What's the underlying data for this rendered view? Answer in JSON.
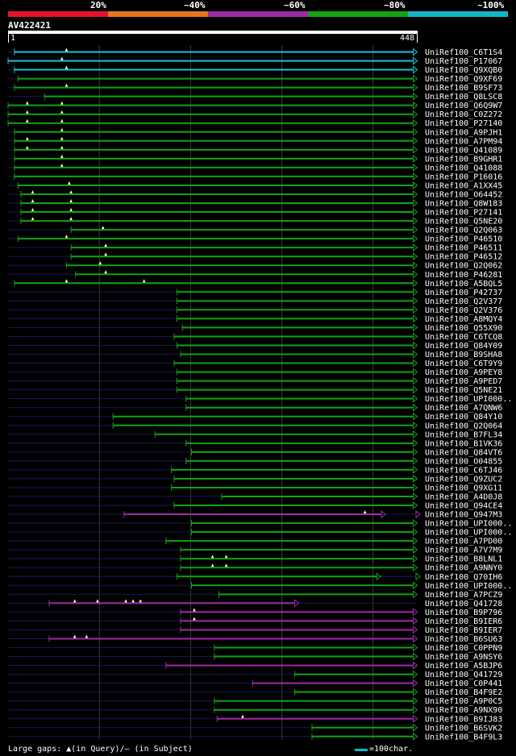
{
  "legend": {
    "labels": [
      "20%",
      "~40%",
      "~60%",
      "~80%",
      "~100%"
    ],
    "colors": [
      "#e8102a",
      "#e8741e",
      "#9b2aa8",
      "#12a212",
      "#13b6c6"
    ]
  },
  "query": {
    "name": "AV422421",
    "start": "1",
    "end": "448",
    "length": 448
  },
  "colors": {
    "cyan": "#13c6d6",
    "green": "#12a212",
    "purple": "#a02aa8",
    "thin": "#16185a",
    "marker": "#ffffaa",
    "grid": "#3a3a3a"
  },
  "footer": {
    "gaps_text": "Large gaps: ▲(in Query)/– (in Subject)",
    "scale_text": "=100char."
  },
  "hits": [
    {
      "name": "UniRef100_C6T1S4",
      "c": "cyan",
      "s": [
        [
          8,
          445
        ]
      ],
      "m": [
        65
      ]
    },
    {
      "name": "UniRef100_P17067",
      "c": "cyan",
      "s": [
        [
          1,
          445
        ]
      ],
      "m": [
        60
      ]
    },
    {
      "name": "UniRef100_Q9XQB0",
      "c": "cyan",
      "s": [
        [
          8,
          445
        ]
      ],
      "m": [
        65
      ]
    },
    {
      "name": "UniRef100_Q9XF69",
      "c": "green",
      "s": [
        [
          12,
          445
        ]
      ],
      "m": []
    },
    {
      "name": "UniRef100_B9SF73",
      "c": "green",
      "s": [
        [
          8,
          445
        ]
      ],
      "m": [
        65
      ]
    },
    {
      "name": "UniRef100_Q8LSC8",
      "c": "green",
      "s": [
        [
          41,
          445
        ]
      ],
      "m": []
    },
    {
      "name": "UniRef100_Q6Q9W7",
      "c": "green",
      "s": [
        [
          1,
          445
        ]
      ],
      "m": [
        22,
        60
      ]
    },
    {
      "name": "UniRef100_C0Z272",
      "c": "green",
      "s": [
        [
          1,
          445
        ]
      ],
      "m": [
        22,
        60
      ]
    },
    {
      "name": "UniRef100_P27140",
      "c": "green",
      "s": [
        [
          1,
          445
        ]
      ],
      "m": [
        22,
        60
      ]
    },
    {
      "name": "UniRef100_A9PJH1",
      "c": "green",
      "s": [
        [
          8,
          445
        ]
      ],
      "m": [
        60
      ]
    },
    {
      "name": "UniRef100_A7PM94",
      "c": "green",
      "s": [
        [
          8,
          445
        ]
      ],
      "m": [
        22,
        60
      ]
    },
    {
      "name": "UniRef100_Q41089",
      "c": "green",
      "s": [
        [
          8,
          445
        ]
      ],
      "m": [
        22,
        60
      ]
    },
    {
      "name": "UniRef100_B9GHR1",
      "c": "green",
      "s": [
        [
          8,
          445
        ]
      ],
      "m": [
        60
      ]
    },
    {
      "name": "UniRef100_Q41088",
      "c": "green",
      "s": [
        [
          8,
          445
        ]
      ],
      "m": [
        60
      ]
    },
    {
      "name": "UniRef100_P16016",
      "c": "green",
      "s": [
        [
          8,
          445
        ]
      ],
      "m": []
    },
    {
      "name": "UniRef100_A1XX45",
      "c": "green",
      "s": [
        [
          12,
          445
        ]
      ],
      "m": [
        68
      ]
    },
    {
      "name": "UniRef100_O64452",
      "c": "green",
      "s": [
        [
          15,
          445
        ]
      ],
      "m": [
        28,
        70
      ]
    },
    {
      "name": "UniRef100_Q8W183",
      "c": "green",
      "s": [
        [
          15,
          445
        ]
      ],
      "m": [
        28,
        70
      ]
    },
    {
      "name": "UniRef100_P27141",
      "c": "green",
      "s": [
        [
          15,
          445
        ]
      ],
      "m": [
        28,
        70
      ]
    },
    {
      "name": "UniRef100_Q5NE20",
      "c": "green",
      "s": [
        [
          15,
          445
        ]
      ],
      "m": [
        28,
        70
      ]
    },
    {
      "name": "UniRef100_Q2Q063",
      "c": "green",
      "s": [
        [
          70,
          445
        ]
      ],
      "m": [
        105
      ]
    },
    {
      "name": "UniRef100_P46510",
      "c": "green",
      "s": [
        [
          12,
          445
        ]
      ],
      "m": [
        65
      ]
    },
    {
      "name": "UniRef100_P46511",
      "c": "green",
      "s": [
        [
          70,
          445
        ]
      ],
      "m": [
        108
      ]
    },
    {
      "name": "UniRef100_P46512",
      "c": "green",
      "s": [
        [
          70,
          445
        ]
      ],
      "m": [
        108
      ]
    },
    {
      "name": "UniRef100_Q2Q062",
      "c": "green",
      "s": [
        [
          65,
          445
        ]
      ],
      "m": [
        102
      ]
    },
    {
      "name": "UniRef100_P46281",
      "c": "green",
      "s": [
        [
          75,
          445
        ]
      ],
      "m": [
        108
      ]
    },
    {
      "name": "UniRef100_A5BQL5",
      "c": "green",
      "s": [
        [
          8,
          445
        ]
      ],
      "m": [
        65,
        150
      ]
    },
    {
      "name": "UniRef100_P42737",
      "c": "green",
      "s": [
        [
          186,
          445
        ]
      ],
      "m": []
    },
    {
      "name": "UniRef100_Q2V377",
      "c": "green",
      "s": [
        [
          186,
          445
        ]
      ],
      "m": []
    },
    {
      "name": "UniRef100_Q2V376",
      "c": "green",
      "s": [
        [
          186,
          445
        ]
      ],
      "m": []
    },
    {
      "name": "UniRef100_A8MQY4",
      "c": "green",
      "s": [
        [
          186,
          445
        ]
      ],
      "m": []
    },
    {
      "name": "UniRef100_Q55X90",
      "c": "green",
      "s": [
        [
          192,
          445
        ]
      ],
      "m": []
    },
    {
      "name": "UniRef100_C6TCQ8",
      "c": "green",
      "s": [
        [
          183,
          445
        ]
      ],
      "m": []
    },
    {
      "name": "UniRef100_Q84Y09",
      "c": "green",
      "s": [
        [
          186,
          445
        ]
      ],
      "m": []
    },
    {
      "name": "UniRef100_B9SHA8",
      "c": "green",
      "s": [
        [
          190,
          445
        ]
      ],
      "m": []
    },
    {
      "name": "UniRef100_C6T9Y9",
      "c": "green",
      "s": [
        [
          183,
          445
        ]
      ],
      "m": []
    },
    {
      "name": "UniRef100_A9PEY8",
      "c": "green",
      "s": [
        [
          186,
          445
        ]
      ],
      "m": []
    },
    {
      "name": "UniRef100_A9PED7",
      "c": "green",
      "s": [
        [
          186,
          445
        ]
      ],
      "m": []
    },
    {
      "name": "UniRef100_Q5NE21",
      "c": "green",
      "s": [
        [
          186,
          445
        ]
      ],
      "m": []
    },
    {
      "name": "UniRef100_UPI000..",
      "c": "green",
      "s": [
        [
          196,
          445
        ]
      ],
      "m": []
    },
    {
      "name": "UniRef100_A7QNW6",
      "c": "green",
      "s": [
        [
          196,
          445
        ]
      ],
      "m": []
    },
    {
      "name": "UniRef100_Q84Y10",
      "c": "green",
      "s": [
        [
          116,
          445
        ]
      ],
      "m": []
    },
    {
      "name": "UniRef100_Q2Q064",
      "c": "green",
      "s": [
        [
          116,
          445
        ]
      ],
      "m": []
    },
    {
      "name": "UniRef100_B7FL34",
      "c": "green",
      "s": [
        [
          162,
          445
        ]
      ],
      "m": []
    },
    {
      "name": "UniRef100_B1VK36",
      "c": "green",
      "s": [
        [
          196,
          445
        ]
      ],
      "m": []
    },
    {
      "name": "UniRef100_Q84VT6",
      "c": "green",
      "s": [
        [
          202,
          445
        ]
      ],
      "m": []
    },
    {
      "name": "UniRef100_O04855",
      "c": "green",
      "s": [
        [
          196,
          445
        ]
      ],
      "m": []
    },
    {
      "name": "UniRef100_C6TJ46",
      "c": "green",
      "s": [
        [
          180,
          445
        ]
      ],
      "m": []
    },
    {
      "name": "UniRef100_Q9ZUC2",
      "c": "green",
      "s": [
        [
          183,
          445
        ]
      ],
      "m": []
    },
    {
      "name": "UniRef100_Q9XG11",
      "c": "green",
      "s": [
        [
          180,
          445
        ]
      ],
      "m": []
    },
    {
      "name": "UniRef100_A4D0J8",
      "c": "green",
      "s": [
        [
          235,
          445
        ]
      ],
      "m": []
    },
    {
      "name": "UniRef100_Q94CE4",
      "c": "green",
      "s": [
        [
          183,
          445
        ]
      ],
      "m": []
    },
    {
      "name": "UniRef100_Q947M3",
      "c": "purple",
      "s": [
        [
          128,
          410
        ]
      ],
      "m": [
        392
      ],
      "arrow": "open"
    },
    {
      "name": "UniRef100_UPI000..",
      "c": "green",
      "s": [
        [
          202,
          445
        ]
      ],
      "m": []
    },
    {
      "name": "UniRef100_UPI000..",
      "c": "green",
      "s": [
        [
          202,
          445
        ]
      ],
      "m": []
    },
    {
      "name": "UniRef100_A7PD00",
      "c": "green",
      "s": [
        [
          174,
          445
        ]
      ],
      "m": []
    },
    {
      "name": "UniRef100_A7V7M9",
      "c": "green",
      "s": [
        [
          190,
          445
        ]
      ],
      "m": []
    },
    {
      "name": "UniRef100_B8LNL1",
      "c": "green",
      "s": [
        [
          190,
          445
        ]
      ],
      "m": [
        225,
        240
      ]
    },
    {
      "name": "UniRef100_A9NNY0",
      "c": "green",
      "s": [
        [
          190,
          445
        ]
      ],
      "m": [
        225,
        240
      ]
    },
    {
      "name": "UniRef100_Q70IH6",
      "c": "green",
      "s": [
        [
          186,
          405
        ]
      ],
      "m": [],
      "arrow": "open"
    },
    {
      "name": "UniRef100_UPI000..",
      "c": "green",
      "s": [
        [
          202,
          445
        ]
      ],
      "m": []
    },
    {
      "name": "UniRef100_A7PCZ9",
      "c": "green",
      "s": [
        [
          232,
          445
        ]
      ],
      "m": []
    },
    {
      "name": "UniRef100_Q41728",
      "c": "purple",
      "s": [
        [
          46,
          315
        ]
      ],
      "m": [
        74,
        99,
        130,
        138,
        146
      ]
    },
    {
      "name": "UniRef100_B9P796",
      "c": "purple",
      "s": [
        [
          190,
          445
        ]
      ],
      "m": [
        205
      ]
    },
    {
      "name": "UniRef100_B9IER6",
      "c": "purple",
      "s": [
        [
          190,
          445
        ]
      ],
      "m": [
        205
      ]
    },
    {
      "name": "UniRef100_B9IER7",
      "c": "purple",
      "s": [
        [
          190,
          445
        ]
      ],
      "m": []
    },
    {
      "name": "UniRef100_B6SU63",
      "c": "purple",
      "s": [
        [
          46,
          445
        ]
      ],
      "m": [
        74,
        87
      ]
    },
    {
      "name": "UniRef100_C0PPN9",
      "c": "green",
      "s": [
        [
          227,
          445
        ]
      ],
      "m": []
    },
    {
      "name": "UniRef100_A9NSY6",
      "c": "green",
      "s": [
        [
          227,
          445
        ]
      ],
      "m": []
    },
    {
      "name": "UniRef100_A5BJP6",
      "c": "purple",
      "s": [
        [
          174,
          445
        ]
      ],
      "m": []
    },
    {
      "name": "UniRef100_Q41729",
      "c": "green",
      "s": [
        [
          315,
          445
        ]
      ],
      "m": []
    },
    {
      "name": "UniRef100_C0P441",
      "c": "purple",
      "s": [
        [
          269,
          445
        ]
      ],
      "m": []
    },
    {
      "name": "UniRef100_B4F9E2",
      "c": "green",
      "s": [
        [
          315,
          445
        ]
      ],
      "m": []
    },
    {
      "name": "UniRef100_A9P0C5",
      "c": "green",
      "s": [
        [
          227,
          445
        ]
      ],
      "m": []
    },
    {
      "name": "UniRef100_A9NX90",
      "c": "green",
      "s": [
        [
          227,
          445
        ]
      ],
      "m": []
    },
    {
      "name": "UniRef100_B9IJ83",
      "c": "purple",
      "s": [
        [
          230,
          445
        ]
      ],
      "m": [
        258
      ]
    },
    {
      "name": "UniRef100_B6SVK2",
      "c": "green",
      "s": [
        [
          334,
          445
        ]
      ],
      "m": []
    },
    {
      "name": "UniRef100_B4F9L3",
      "c": "green",
      "s": [
        [
          334,
          445
        ]
      ],
      "m": []
    }
  ]
}
